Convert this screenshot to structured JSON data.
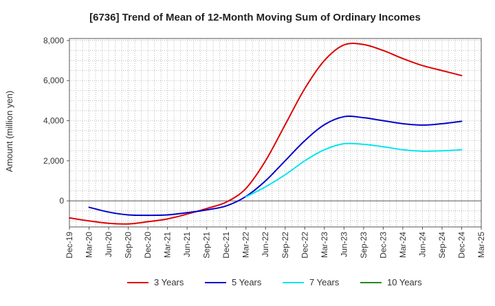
{
  "chart_data": {
    "type": "line",
    "title": "[6736]  Trend of Mean of 12-Month Moving Sum of Ordinary Incomes",
    "xlabel": "",
    "ylabel": "Amount (million yen)",
    "ylim": [
      -1300,
      8100
    ],
    "yticks": [
      0,
      2000,
      4000,
      6000,
      8000
    ],
    "ytick_labels": [
      "0",
      "2,000",
      "4,000",
      "6,000",
      "8,000"
    ],
    "categories": [
      "Dec-19",
      "Mar-20",
      "Jun-20",
      "Sep-20",
      "Dec-20",
      "Mar-21",
      "Jun-21",
      "Sep-21",
      "Dec-21",
      "Mar-22",
      "Jun-22",
      "Sep-22",
      "Dec-22",
      "Mar-23",
      "Jun-23",
      "Sep-23",
      "Dec-23",
      "Mar-24",
      "Jun-24",
      "Sep-24",
      "Dec-24",
      "Mar-25"
    ],
    "grid": true,
    "legend_position": "bottom",
    "series": [
      {
        "name": "3 Years",
        "color": "#dd0000",
        "values": [
          -850,
          -1000,
          -1120,
          -1150,
          -1040,
          -900,
          -660,
          -380,
          -60,
          620,
          2000,
          3800,
          5600,
          7000,
          7780,
          7800,
          7500,
          7100,
          6750,
          6500,
          6250,
          null
        ]
      },
      {
        "name": "5 Years",
        "color": "#0000cc",
        "values": [
          null,
          -320,
          -560,
          -700,
          -720,
          -700,
          -590,
          -450,
          -250,
          220,
          1000,
          2000,
          3000,
          3800,
          4200,
          4150,
          4000,
          3850,
          3780,
          3850,
          3970,
          null
        ]
      },
      {
        "name": "7 Years",
        "color": "#00e5ee",
        "values": [
          null,
          null,
          null,
          null,
          null,
          null,
          null,
          null,
          null,
          200,
          700,
          1300,
          2000,
          2550,
          2850,
          2820,
          2700,
          2550,
          2480,
          2500,
          2550,
          null
        ]
      },
      {
        "name": "10 Years",
        "color": "#228822",
        "values": [
          null,
          null,
          null,
          null,
          null,
          null,
          null,
          null,
          null,
          null,
          null,
          null,
          null,
          null,
          null,
          null,
          null,
          null,
          null,
          null,
          null,
          null
        ]
      }
    ]
  }
}
